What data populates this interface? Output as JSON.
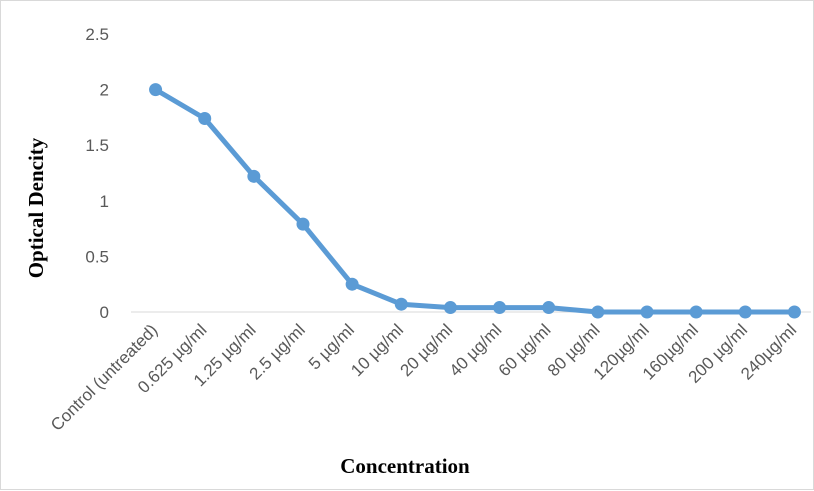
{
  "chart_data": {
    "type": "line",
    "title": "",
    "xlabel": "Concentration",
    "ylabel": "Optical Dencity",
    "categories": [
      "Control (untreated)",
      "0.625 µg/ml",
      "1.25 µg/ml",
      "2.5 µg/ml",
      "5 µg/ml",
      "10 µg/ml",
      "20 µg/ml",
      "40 µg/ml",
      "60 µg/ml",
      "80 µg/ml",
      "120µg/ml",
      "160µg/ml",
      "200 µg/ml",
      "240µg/ml"
    ],
    "series": [
      {
        "values": [
          2.0,
          1.74,
          1.22,
          0.79,
          0.25,
          0.07,
          0.04,
          0.04,
          0.04,
          0.0,
          0.0,
          0.0,
          0.0,
          0.0
        ]
      }
    ],
    "ylim": [
      0,
      2.5
    ],
    "yticks": [
      "0",
      "0.5",
      "1",
      "1.5",
      "2",
      "2.5"
    ],
    "grid": false,
    "legend": "none",
    "color": "#5b9bd5"
  }
}
